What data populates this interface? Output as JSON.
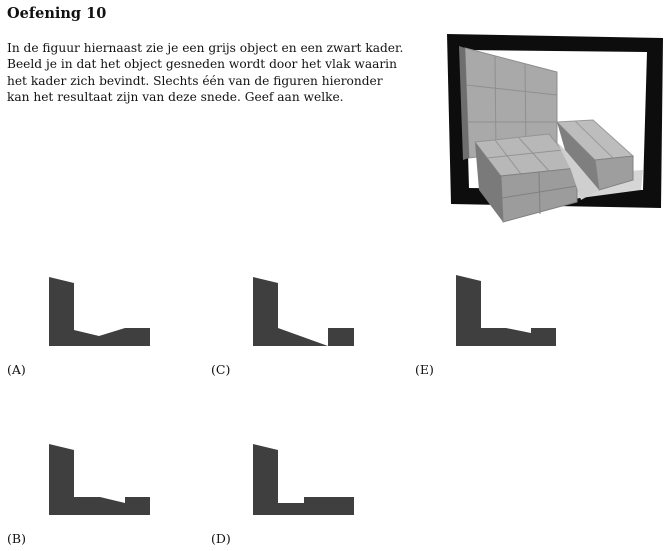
{
  "exercise": {
    "title": "Oefening 10",
    "paragraph_lines": [
      "In de figuur hiernaast zie je een grijs object en een zwart kader.",
      "Beeld je in dat het object gesneden wordt door het vlak waarin",
      "het kader zich bevindt.  Slechts één van de figuren hieronder",
      "kan het resultaat zijn van deze snede.  Geef aan welke."
    ]
  },
  "options": {
    "A": {
      "label": "(A)"
    },
    "B": {
      "label": "(B)"
    },
    "C": {
      "label": "(C)"
    },
    "D": {
      "label": "(D)"
    },
    "E": {
      "label": "(E)"
    }
  },
  "colors": {
    "shape_fill": "#3f3f3f",
    "frame": "#0d0d0d",
    "object_gray": "#a8a8a8"
  }
}
